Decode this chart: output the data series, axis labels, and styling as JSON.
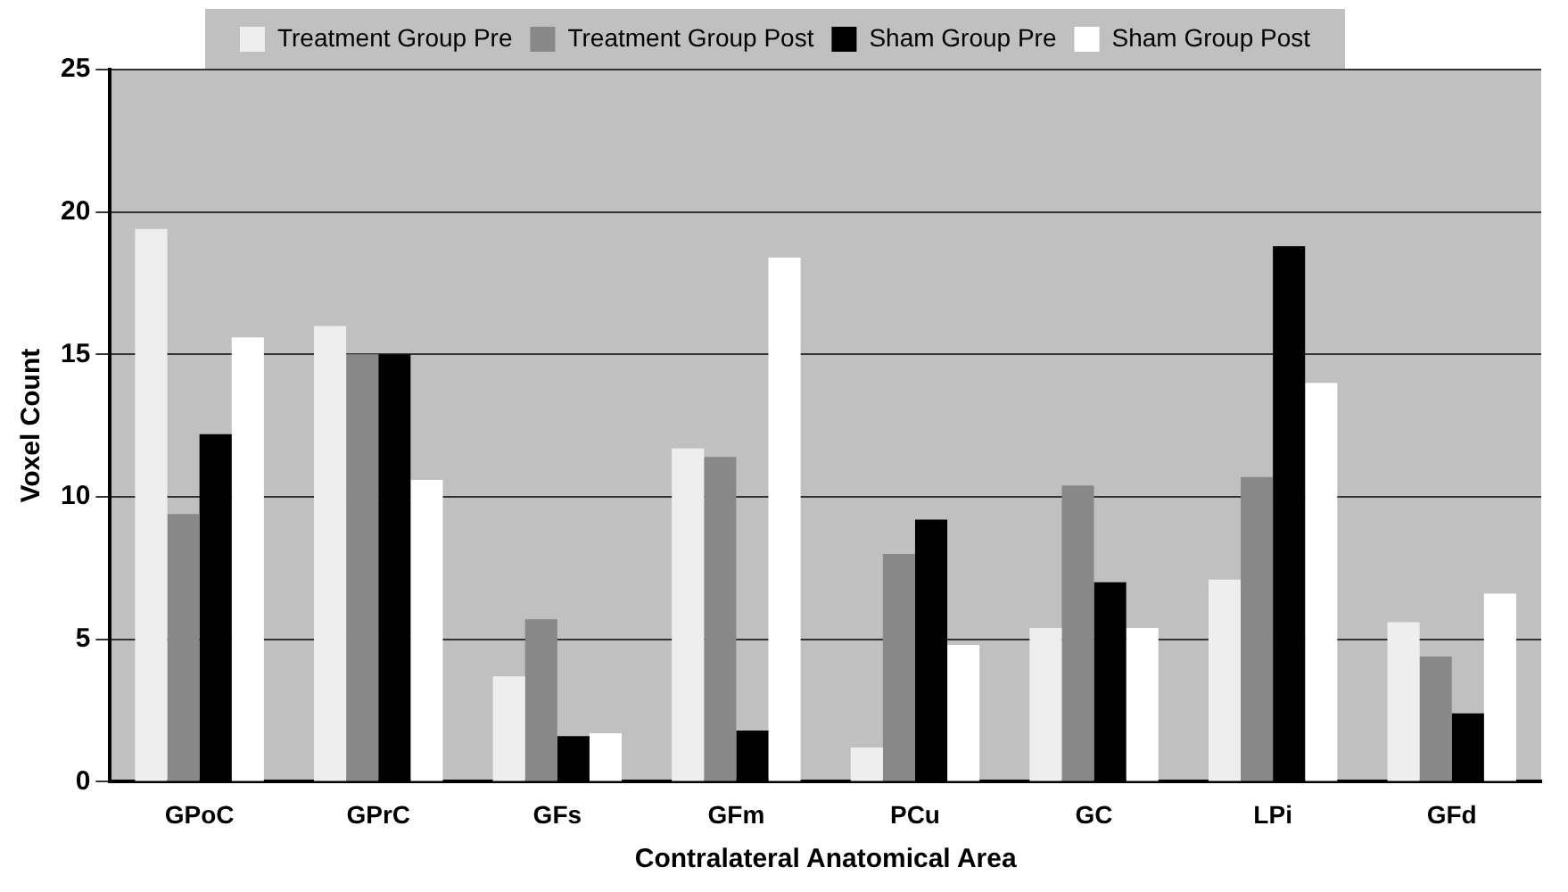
{
  "chart_data": {
    "type": "bar",
    "xlabel": "Contralateral Anatomical Area",
    "ylabel": "Voxel Count",
    "categories": [
      "GPoC",
      "GPrC",
      "GFs",
      "GFm",
      "PCu",
      "GC",
      "LPi",
      "GFd"
    ],
    "series": [
      {
        "name": "Treatment Group Pre",
        "color": "#eeeeee",
        "values": [
          19.4,
          16,
          3.7,
          11.7,
          1.2,
          5.4,
          7.1,
          5.6
        ]
      },
      {
        "name": "Treatment Group Post",
        "color": "#888888",
        "values": [
          9.4,
          15,
          5.7,
          11.4,
          8,
          10.4,
          10.7,
          4.4
        ]
      },
      {
        "name": "Sham Group Pre",
        "color": "#000000",
        "values": [
          12.2,
          15,
          1.6,
          1.8,
          9.2,
          7,
          18.8,
          2.4
        ]
      },
      {
        "name": "Sham Group Post",
        "color": "#ffffff",
        "values": [
          15.6,
          10.6,
          1.7,
          18.4,
          4.8,
          5.4,
          14,
          6.6
        ]
      }
    ],
    "ylim": [
      0,
      25
    ],
    "yticks": [
      0,
      5,
      10,
      15,
      20,
      25
    ],
    "grid": "y",
    "legend": "top"
  }
}
